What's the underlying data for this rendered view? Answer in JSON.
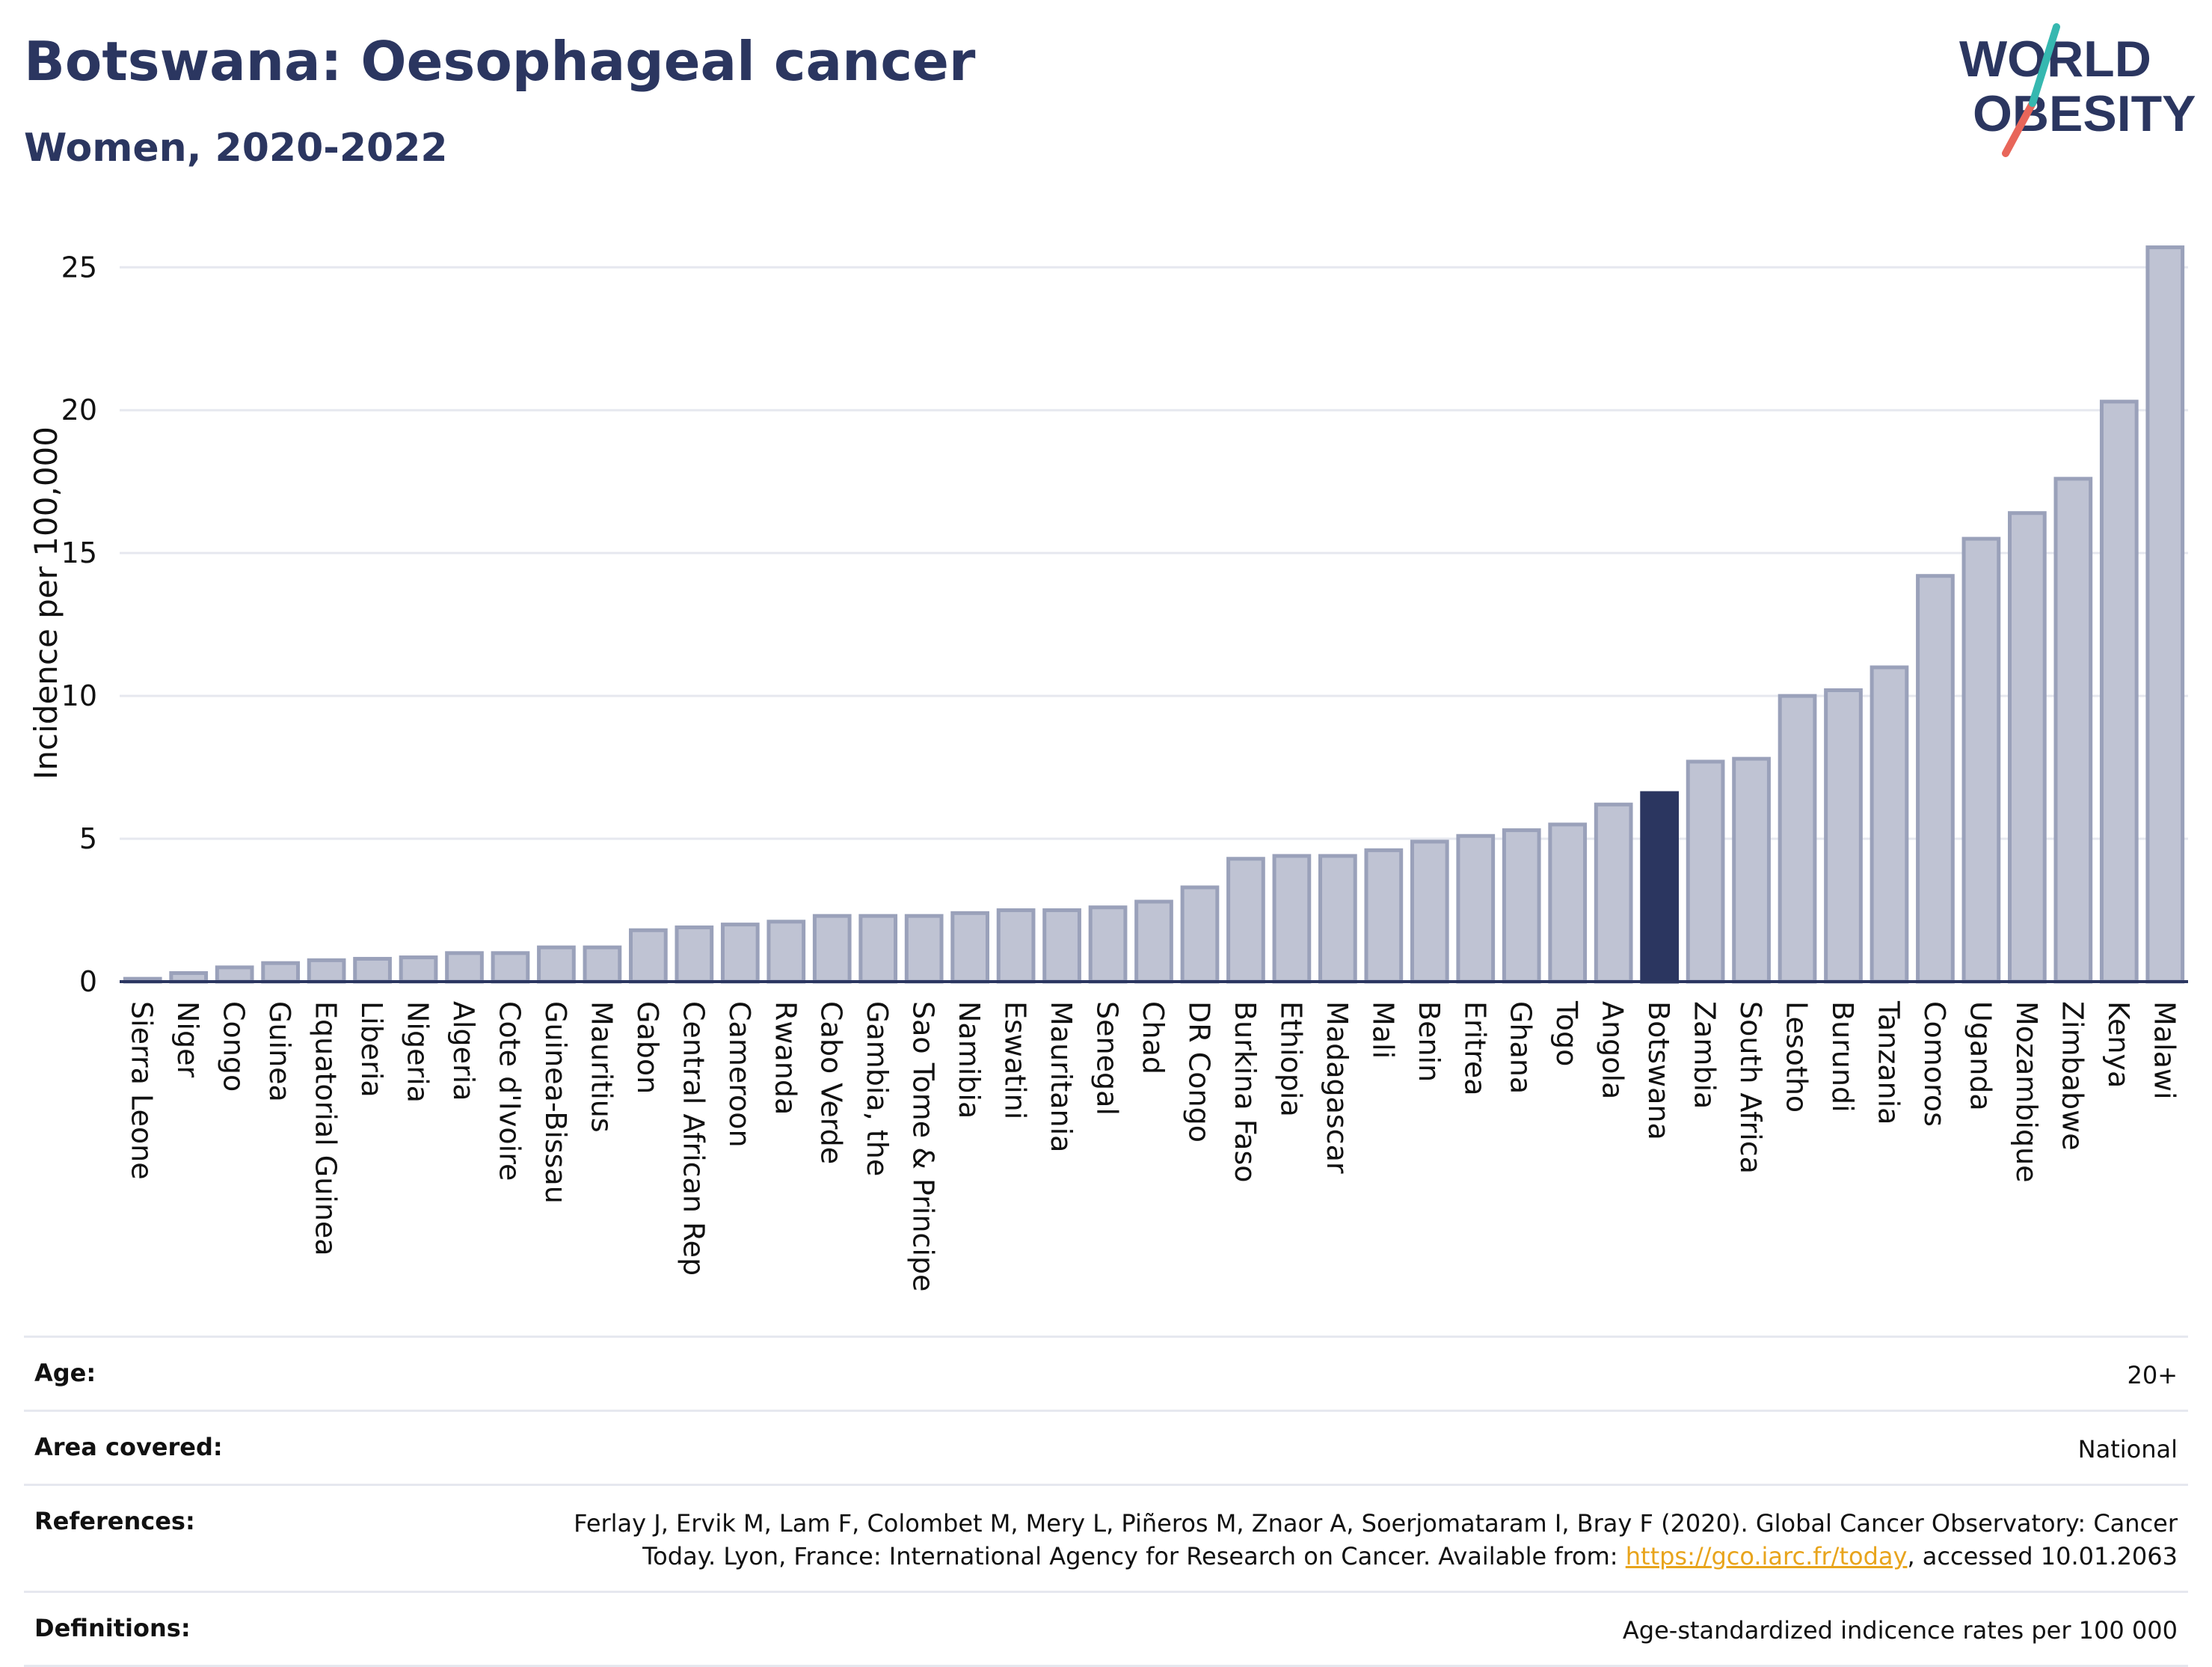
{
  "header": {
    "title": "Botswana: Oesophageal cancer",
    "subtitle": "Women, 2020-2022"
  },
  "logo": {
    "line1": "WORLD",
    "line2": "OBESITY"
  },
  "chart_data": {
    "type": "bar",
    "ylabel": "Incidence per 100,000",
    "ylim": [
      0,
      26.5
    ],
    "yticks": [
      0,
      5,
      10,
      15,
      20,
      25
    ],
    "grid": true,
    "highlight": "Botswana",
    "colors": {
      "bar": "#bfc3d3",
      "bar_border": "#9aa1ba",
      "highlight": "#2b3660",
      "grid": "#e6e8ef"
    },
    "categories": [
      "Sierra Leone",
      "Niger",
      "Congo",
      "Guinea",
      "Equatorial Guinea",
      "Liberia",
      "Nigeria",
      "Algeria",
      "Cote d'Ivoire",
      "Guinea-Bissau",
      "Mauritius",
      "Gabon",
      "Central African Rep",
      "Cameroon",
      "Rwanda",
      "Cabo Verde",
      "Gambia, the",
      "Sao Tome & Principe",
      "Namibia",
      "Eswatini",
      "Mauritania",
      "Senegal",
      "Chad",
      "DR Congo",
      "Burkina Faso",
      "Ethiopia",
      "Madagascar",
      "Mali",
      "Benin",
      "Eritrea",
      "Ghana",
      "Togo",
      "Angola",
      "Botswana",
      "Zambia",
      "South Africa",
      "Lesotho",
      "Burundi",
      "Tanzania",
      "Comoros",
      "Uganda",
      "Mozambique",
      "Zimbabwe",
      "Kenya",
      "Malawi"
    ],
    "values": [
      0.1,
      0.3,
      0.5,
      0.65,
      0.75,
      0.8,
      0.85,
      1.0,
      1.0,
      1.2,
      1.2,
      1.8,
      1.9,
      2.0,
      2.1,
      2.3,
      2.3,
      2.3,
      2.4,
      2.5,
      2.5,
      2.6,
      2.8,
      3.3,
      4.3,
      4.4,
      4.4,
      4.6,
      4.9,
      5.1,
      5.3,
      5.5,
      6.2,
      6.6,
      7.7,
      7.8,
      10.0,
      10.2,
      11.0,
      14.2,
      15.5,
      16.4,
      17.6,
      20.3,
      25.7
    ]
  },
  "footer": {
    "age_label": "Age:",
    "age_value": "20+",
    "area_label": "Area covered:",
    "area_value": "National",
    "references_label": "References:",
    "references_line1": "Ferlay J, Ervik M, Lam F, Colombet M, Mery L, Piñeros M, Znaor A, Soerjomataram I, Bray F (2020). Global Cancer Observatory: Cancer",
    "references_line2_pre": "Today. Lyon, France: International Agency for Research on Cancer. Available from: ",
    "references_link": "https://gco.iarc.fr/today",
    "references_line2_post": ", accessed 10.01.2063",
    "definitions_label": "Definitions:",
    "definitions_value": "Age-standardized indicence rates per 100 000"
  }
}
